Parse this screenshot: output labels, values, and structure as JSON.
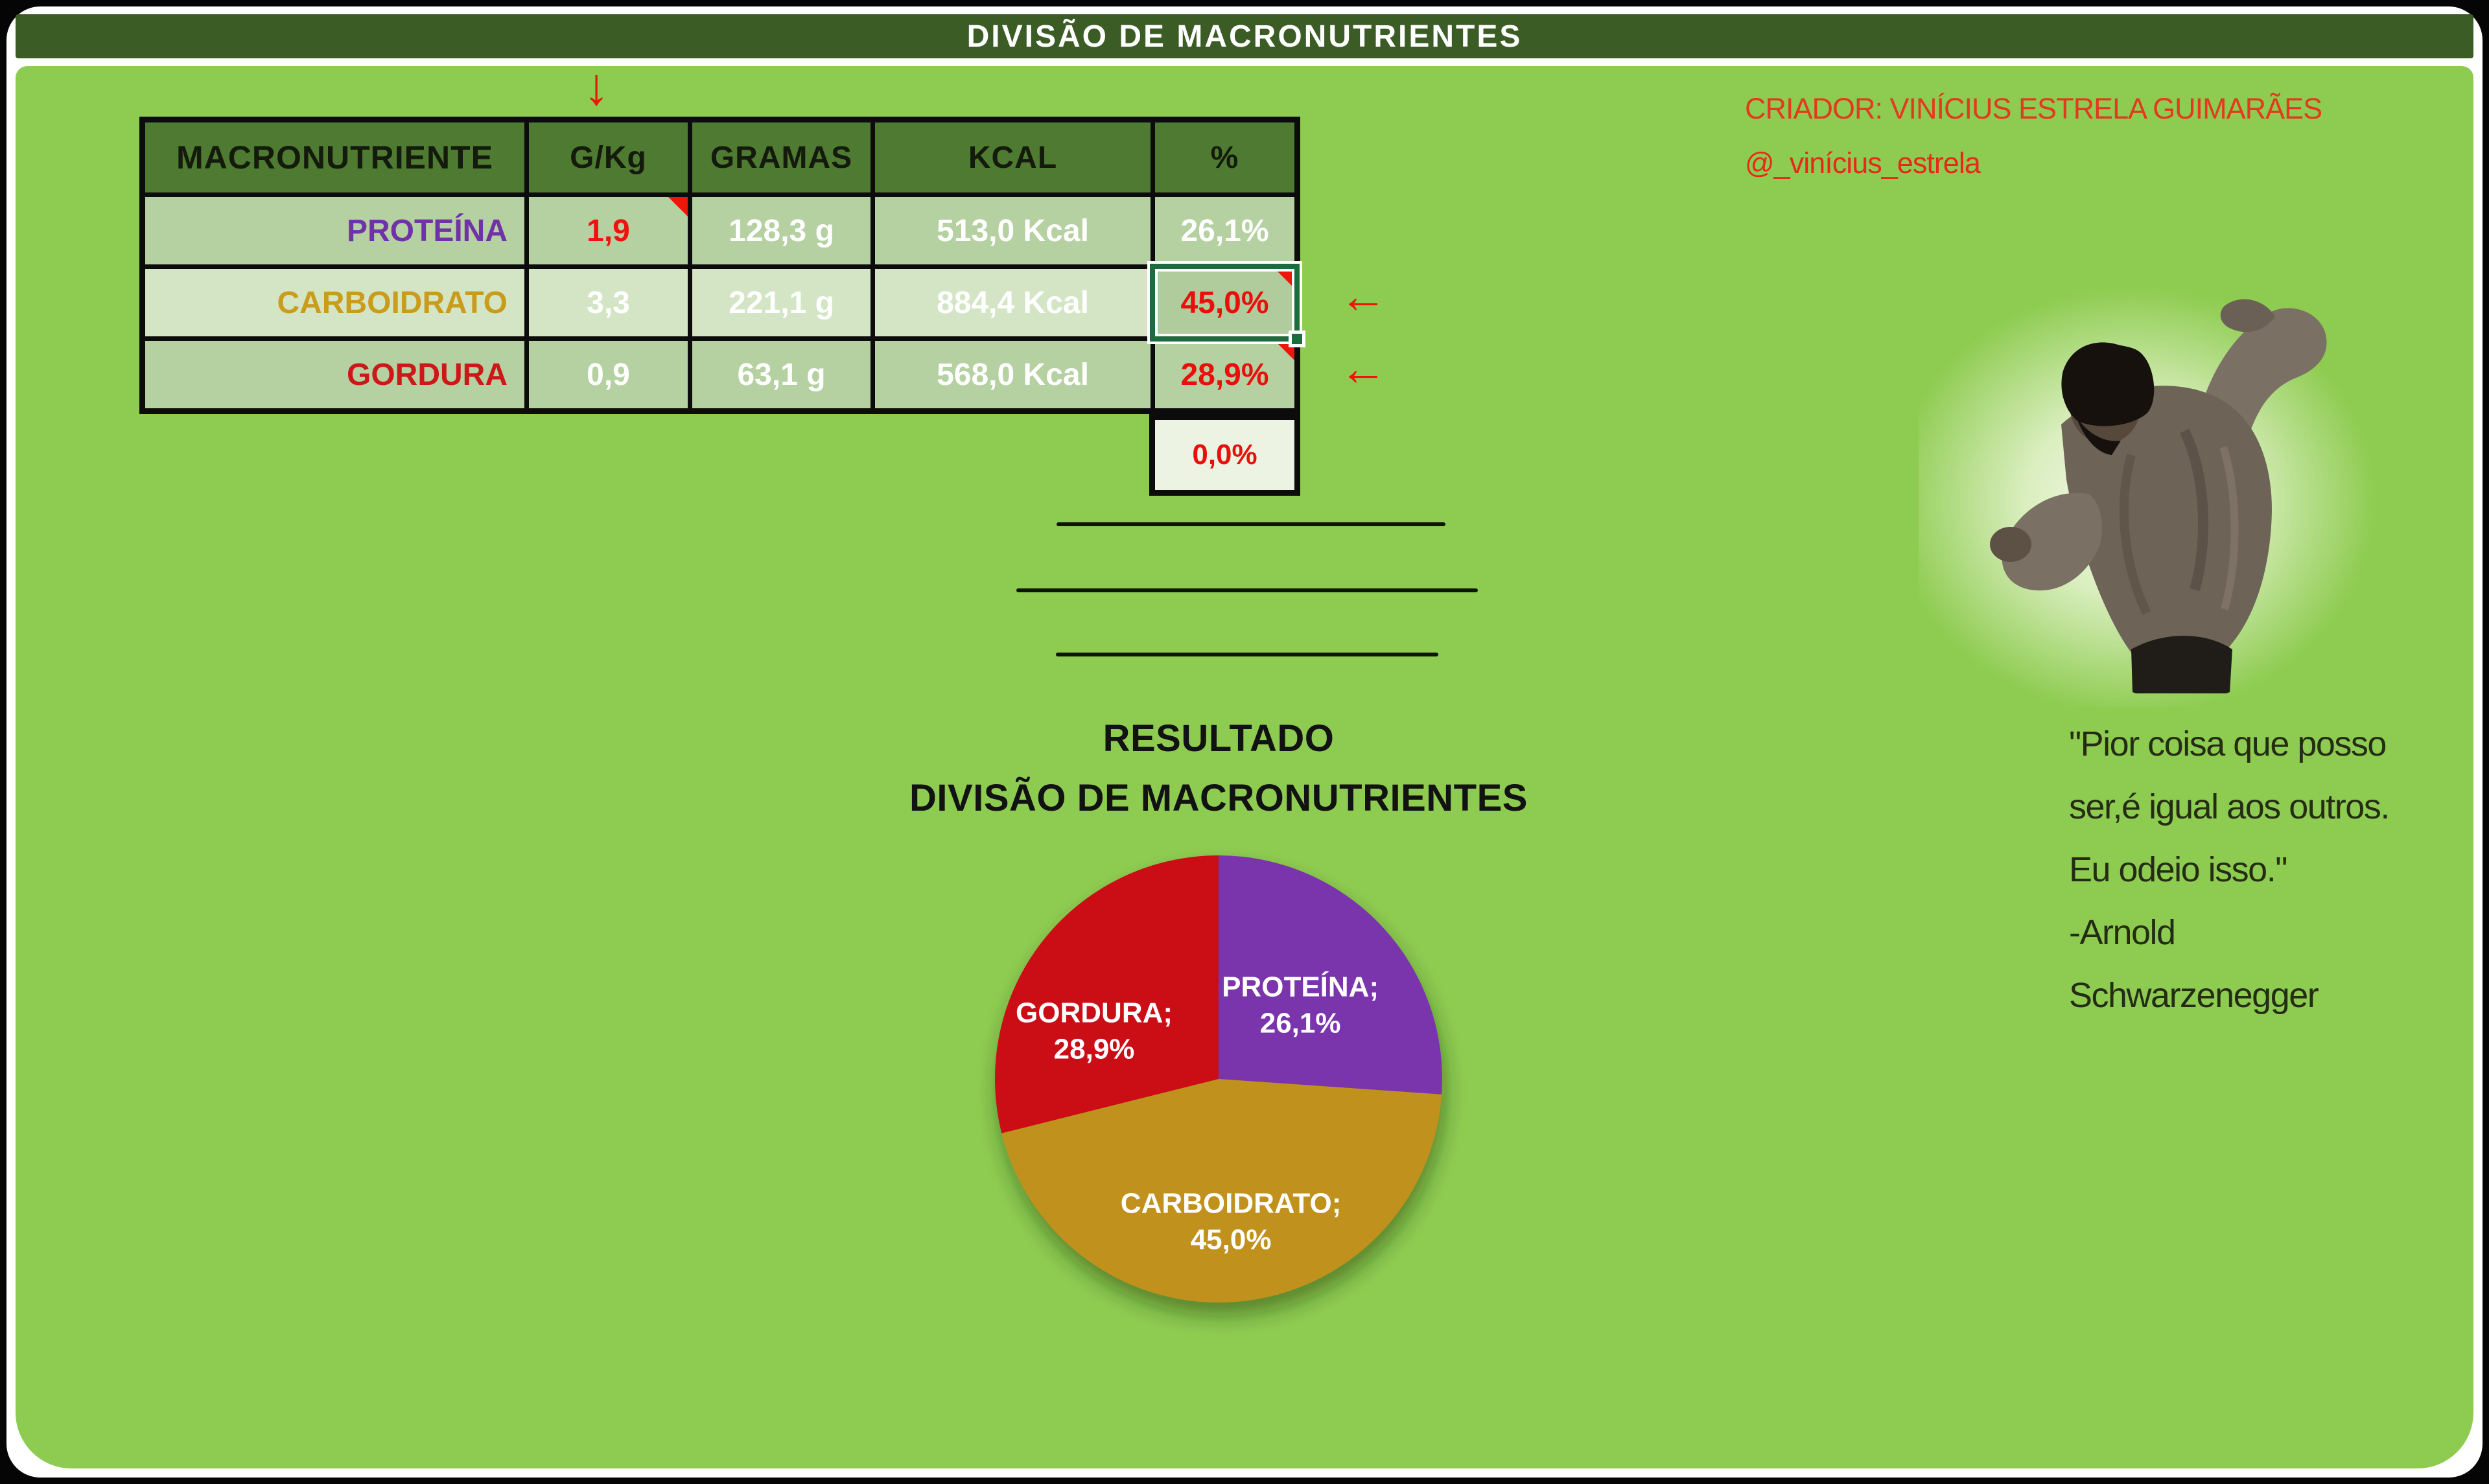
{
  "page": {
    "title": "DIVISÃO DE MACRONUTRIENTES"
  },
  "creator": {
    "label": "CRIADOR: VINÍCIUS ESTRELA GUIMARÃES",
    "handle": "@_vinícius_estrela"
  },
  "arrows": {
    "down": "↓",
    "left": "←"
  },
  "table": {
    "columns": [
      "MACRONUTRIENTE",
      "G/Kg",
      "GRAMAS",
      "KCAL",
      "%"
    ],
    "rows": [
      {
        "name": "PROTEÍNA",
        "gkg": "1,9",
        "gramas": "128,3 g",
        "kcal": "513,0 Kcal",
        "pct": "26,1%",
        "name_color": "#7132a8",
        "gkg_color": "#ef1310",
        "pct_color": "#ffffff",
        "bg": "#b5d0a1",
        "pct_bg": "#b5d0a1",
        "gkg_note": true,
        "pct_note": false
      },
      {
        "name": "CARBOIDRATO",
        "gkg": "3,3",
        "gramas": "221,1 g",
        "kcal": "884,4 Kcal",
        "pct": "45,0%",
        "name_color": "#c99c1b",
        "gkg_color": "#ffffff",
        "pct_color": "#e8100c",
        "bg": "#d4e5c5",
        "pct_bg": "#b1cc9c",
        "gkg_note": false,
        "pct_note": true
      },
      {
        "name": "GORDURA",
        "gkg": "0,9",
        "gramas": "63,1 g",
        "kcal": "568,0 Kcal",
        "pct": "28,9%",
        "name_color": "#cd1719",
        "gkg_color": "#ffffff",
        "pct_color": "#e8100c",
        "bg": "#b5d0a1",
        "pct_bg": "#b5d0a1",
        "gkg_note": false,
        "pct_note": true
      }
    ],
    "footer_pct": "0,0%"
  },
  "result": {
    "line1": "RESULTADO",
    "line2": "DIVISÃO DE MACRONUTRIENTES"
  },
  "chart_data": {
    "type": "pie",
    "title": "RESULTADO DIVISÃO DE MACRONUTRIENTES",
    "categories": [
      "PROTEÍNA",
      "CARBOIDRATO",
      "GORDURA"
    ],
    "values": [
      26.1,
      45.0,
      28.9
    ],
    "start": "12-oclock",
    "direction": "clockwise",
    "legend_position": "none",
    "label_color": "#ffffff",
    "slices": [
      {
        "name": "PROTEÍNA",
        "value": 26.1,
        "label": "PROTEÍNA;",
        "pct_label": "26,1%",
        "color": "#7a36ad"
      },
      {
        "name": "CARBOIDRATO",
        "value": 45.0,
        "label": "CARBOIDRATO;",
        "pct_label": "45,0%",
        "color": "#c0911a"
      },
      {
        "name": "GORDURA",
        "value": 28.9,
        "label": "GORDURA;",
        "pct_label": "28,9%",
        "color": "#cb1114"
      }
    ]
  },
  "quote": {
    "lines": [
      "\"Pior coisa que posso",
      "ser,é igual aos outros.",
      "Eu odeio isso.\"",
      "-Arnold",
      "Schwarzenegger"
    ]
  },
  "colors": {
    "bg_green": "#8ecc51",
    "band_green": "#3b5c25",
    "header_green": "#4e7a31",
    "select_green": "#1e6b40",
    "arrow_red": "#ee1509",
    "creator1": "#e13a1f",
    "creator2": "#e7291a",
    "table_border": "#0c0c0c"
  }
}
